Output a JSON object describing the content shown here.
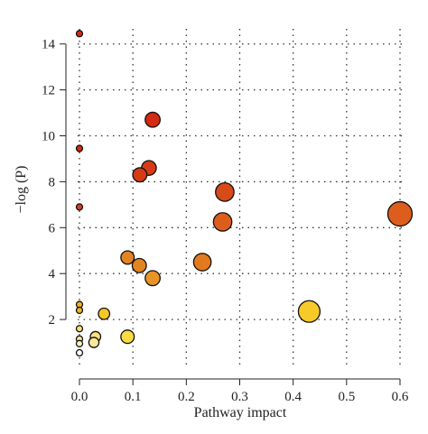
{
  "chart_data": {
    "type": "scatter",
    "title": "",
    "xlabel": "Pathway impact",
    "ylabel": "−log (P)",
    "xlim": [
      0,
      0.6
    ],
    "ylim": [
      0,
      14.5
    ],
    "xticks": [
      "0.0",
      "0.1",
      "0.2",
      "0.3",
      "0.4",
      "0.5",
      "0.6"
    ],
    "xtick_values": [
      0,
      0.1,
      0.2,
      0.3,
      0.4,
      0.5,
      0.6
    ],
    "yticks": [
      "2",
      "4",
      "6",
      "8",
      "10",
      "12",
      "14"
    ],
    "ytick_values": [
      2,
      4,
      6,
      8,
      10,
      12,
      14
    ],
    "grid": true,
    "grid_style": "dotted",
    "legend": "none",
    "encoding": "point size = pathway impact; point colour from white/yellow (low −log P) to red (high −log P)",
    "points": [
      {
        "x": 0.0,
        "y": 14.45,
        "color": "#d42a14"
      },
      {
        "x": 0.0,
        "y": 9.45,
        "color": "#d42a14"
      },
      {
        "x": 0.0,
        "y": 6.9,
        "color": "#d84016"
      },
      {
        "x": 0.0,
        "y": 2.65,
        "color": "#f0b41a"
      },
      {
        "x": 0.0,
        "y": 2.4,
        "color": "#f0b41a"
      },
      {
        "x": 0.0,
        "y": 1.6,
        "color": "#fae070"
      },
      {
        "x": 0.0,
        "y": 1.15,
        "color": "#fce898"
      },
      {
        "x": 0.0,
        "y": 0.95,
        "color": "#fdf0c0"
      },
      {
        "x": 0.0,
        "y": 0.55,
        "color": "#ffffff"
      },
      {
        "x": 0.03,
        "y": 1.25,
        "color": "#fce27a"
      },
      {
        "x": 0.027,
        "y": 1.0,
        "color": "#fde99a"
      },
      {
        "x": 0.046,
        "y": 2.25,
        "color": "#f5c828"
      },
      {
        "x": 0.09,
        "y": 1.25,
        "color": "#f9dc40"
      },
      {
        "x": 0.09,
        "y": 4.7,
        "color": "#e38422"
      },
      {
        "x": 0.112,
        "y": 4.35,
        "color": "#e38422"
      },
      {
        "x": 0.137,
        "y": 3.8,
        "color": "#e89426"
      },
      {
        "x": 0.137,
        "y": 10.7,
        "color": "#d42a14"
      },
      {
        "x": 0.13,
        "y": 8.6,
        "color": "#d63a16"
      },
      {
        "x": 0.113,
        "y": 8.3,
        "color": "#d63a16"
      },
      {
        "x": 0.23,
        "y": 4.5,
        "color": "#e27a20"
      },
      {
        "x": 0.272,
        "y": 7.55,
        "color": "#d84a18"
      },
      {
        "x": 0.268,
        "y": 6.25,
        "color": "#dd5e1c"
      },
      {
        "x": 0.43,
        "y": 2.35,
        "color": "#f6ca28"
      },
      {
        "x": 0.6,
        "y": 6.6,
        "color": "#dd5e1c"
      }
    ]
  }
}
